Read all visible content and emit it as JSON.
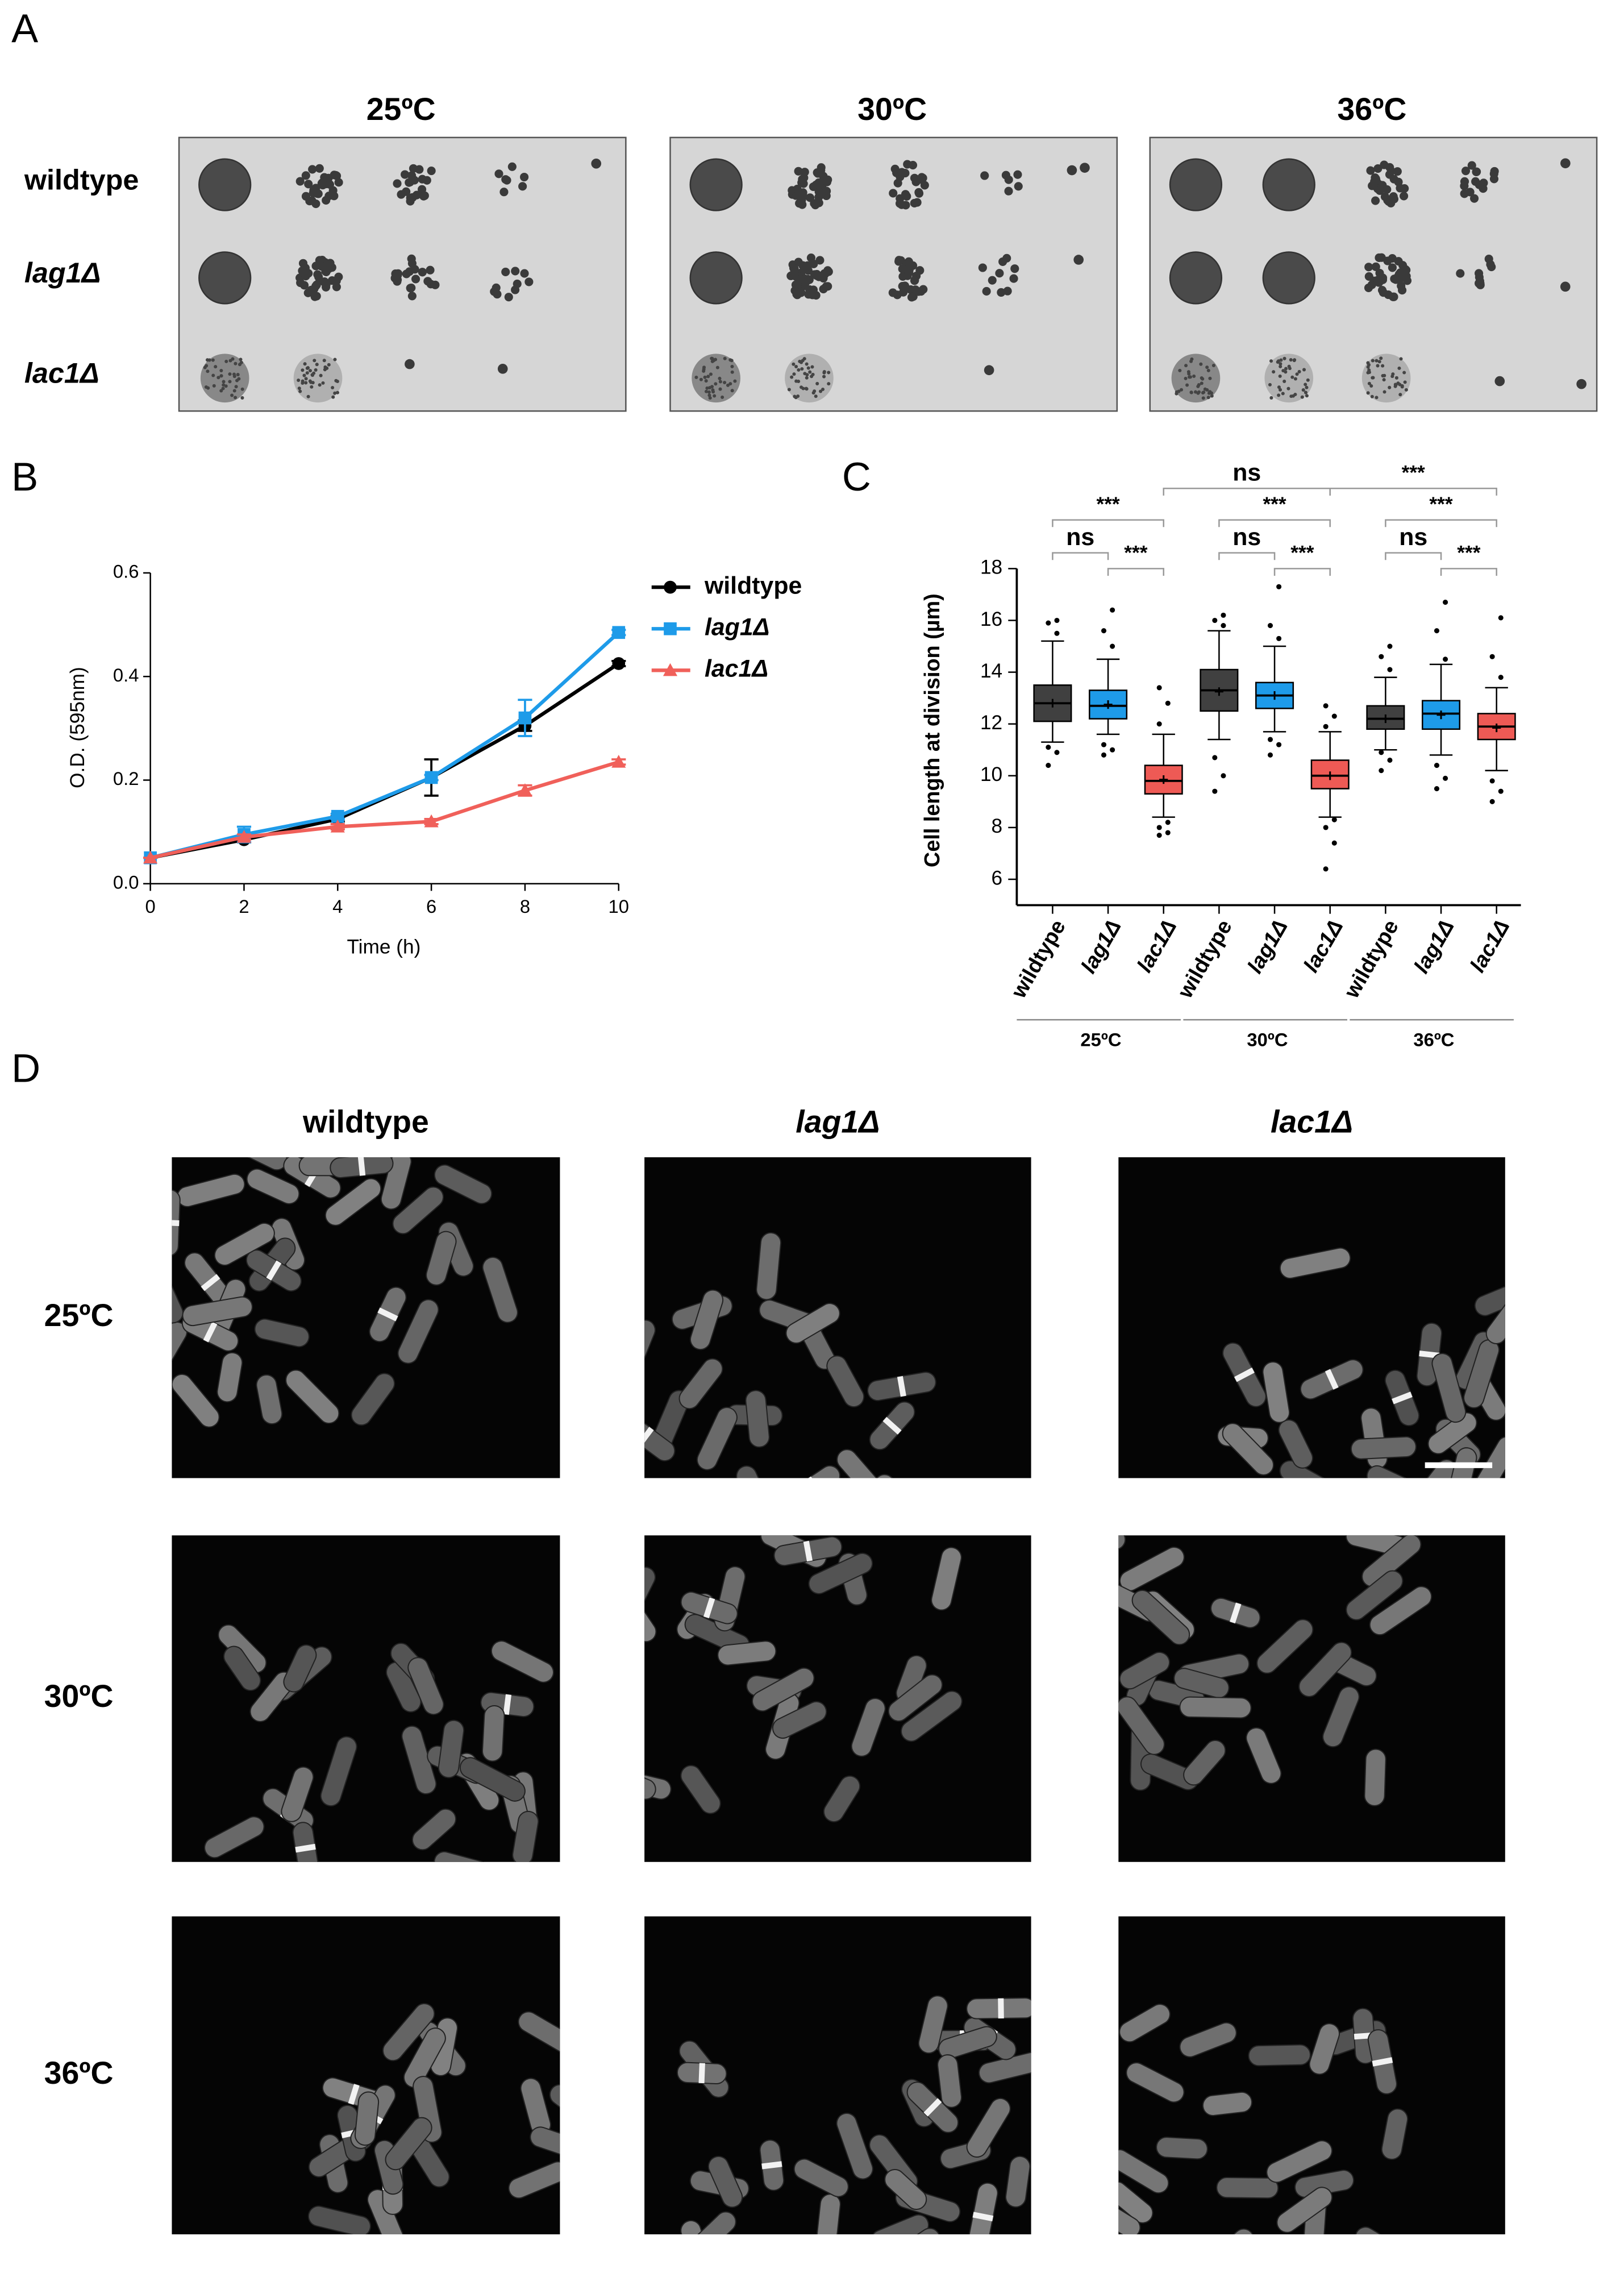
{
  "panel_labels": [
    "A",
    "B",
    "C",
    "D"
  ],
  "spot_assay": {
    "temperatures": [
      "25ºC",
      "30ºC",
      "36ºC"
    ],
    "strains": [
      "wildtype",
      "lag1Δ",
      "lac1Δ"
    ]
  },
  "chart_data": [
    {
      "type": "line",
      "xlabel": "Time (h)",
      "ylabel": "O.D. (595nm)",
      "x": [
        0,
        2,
        4,
        6,
        8,
        10
      ],
      "series": [
        {
          "name": "wildtype",
          "color": "#000000",
          "marker": "circle",
          "values": [
            0.05,
            0.085,
            0.125,
            0.205,
            0.305,
            0.425
          ],
          "errors": [
            0,
            0.005,
            0.005,
            0.035,
            0.01,
            0.005
          ]
        },
        {
          "name": "lag1Δ",
          "color": "#1e9be9",
          "marker": "square",
          "values": [
            0.05,
            0.095,
            0.13,
            0.205,
            0.32,
            0.485
          ],
          "errors": [
            0,
            0.015,
            0.005,
            0.005,
            0.035,
            0.005
          ]
        },
        {
          "name": "lac1Δ",
          "color": "#f0605a",
          "marker": "triangle",
          "values": [
            0.05,
            0.09,
            0.11,
            0.12,
            0.18,
            0.235
          ],
          "errors": [
            0,
            0.005,
            0.005,
            0.005,
            0.01,
            0.005
          ]
        }
      ],
      "xlim": [
        0,
        10
      ],
      "xticks": [
        0,
        2,
        4,
        6,
        8,
        10
      ],
      "ylim": [
        0,
        0.6
      ],
      "yticks": [
        {
          "value": 0,
          "label": "0.0"
        },
        0.2,
        0.4,
        0.6
      ],
      "legend": "right"
    },
    {
      "type": "box",
      "ylabel": "Cell length at division (µm)",
      "categories": [
        "wildtype",
        "lag1Δ",
        "lac1Δ",
        "wildtype",
        "lag1Δ",
        "lac1Δ",
        "wildtype",
        "lag1Δ",
        "lac1Δ"
      ],
      "groups": [
        "25ºC",
        "30ºC",
        "36ºC"
      ],
      "colors": [
        "#404040",
        "#1e9be9",
        "#ee5a55",
        "#404040",
        "#1e9be9",
        "#ee5a55",
        "#404040",
        "#1e9be9",
        "#ee5a55"
      ],
      "whisker_low": [
        11.3,
        11.6,
        8.4,
        11.4,
        11.7,
        8.4,
        11.0,
        10.8,
        10.2
      ],
      "q1": [
        12.1,
        12.2,
        9.3,
        12.5,
        12.6,
        9.5,
        11.8,
        11.8,
        11.4
      ],
      "median": [
        12.8,
        12.7,
        9.8,
        13.3,
        13.1,
        10.0,
        12.2,
        12.4,
        11.9
      ],
      "q3": [
        13.5,
        13.3,
        10.4,
        14.1,
        13.6,
        10.6,
        12.7,
        12.9,
        12.4
      ],
      "whisker_high": [
        15.2,
        14.5,
        11.6,
        15.6,
        15.0,
        11.7,
        13.8,
        14.3,
        13.4
      ],
      "mean": [
        12.8,
        12.75,
        9.85,
        13.25,
        13.1,
        10.0,
        12.2,
        12.35,
        11.85
      ],
      "outliers": [
        [
          10.4,
          10.9,
          11.1,
          15.5,
          15.9,
          16.0
        ],
        [
          10.8,
          11.0,
          11.2,
          15.0,
          15.6,
          16.4
        ],
        [
          7.7,
          7.8,
          8.0,
          8.2,
          12.0,
          12.8,
          13.4
        ],
        [
          9.4,
          10.0,
          10.7,
          15.8,
          16.0,
          16.2
        ],
        [
          10.8,
          11.2,
          11.4,
          15.3,
          15.8,
          17.3
        ],
        [
          6.4,
          7.4,
          8.0,
          8.3,
          11.9,
          12.3,
          12.7
        ],
        [
          10.2,
          10.6,
          10.9,
          14.1,
          14.6,
          15.0
        ],
        [
          9.5,
          9.9,
          10.4,
          14.5,
          15.6,
          16.7
        ],
        [
          9.0,
          9.4,
          9.8,
          13.8,
          14.6,
          16.1
        ]
      ],
      "ylim": [
        5,
        18
      ],
      "yticks": [
        6,
        8,
        10,
        12,
        14,
        16,
        18
      ],
      "annotations": [
        "ns",
        "***",
        "***",
        "***",
        "***",
        "ns",
        "***",
        "ns",
        "***",
        "ns",
        "***"
      ]
    }
  ],
  "micrographs": {
    "strains": [
      "wildtype",
      "lag1Δ",
      "lac1Δ"
    ],
    "temperatures": [
      "25ºC",
      "30ºC",
      "36ºC"
    ]
  }
}
